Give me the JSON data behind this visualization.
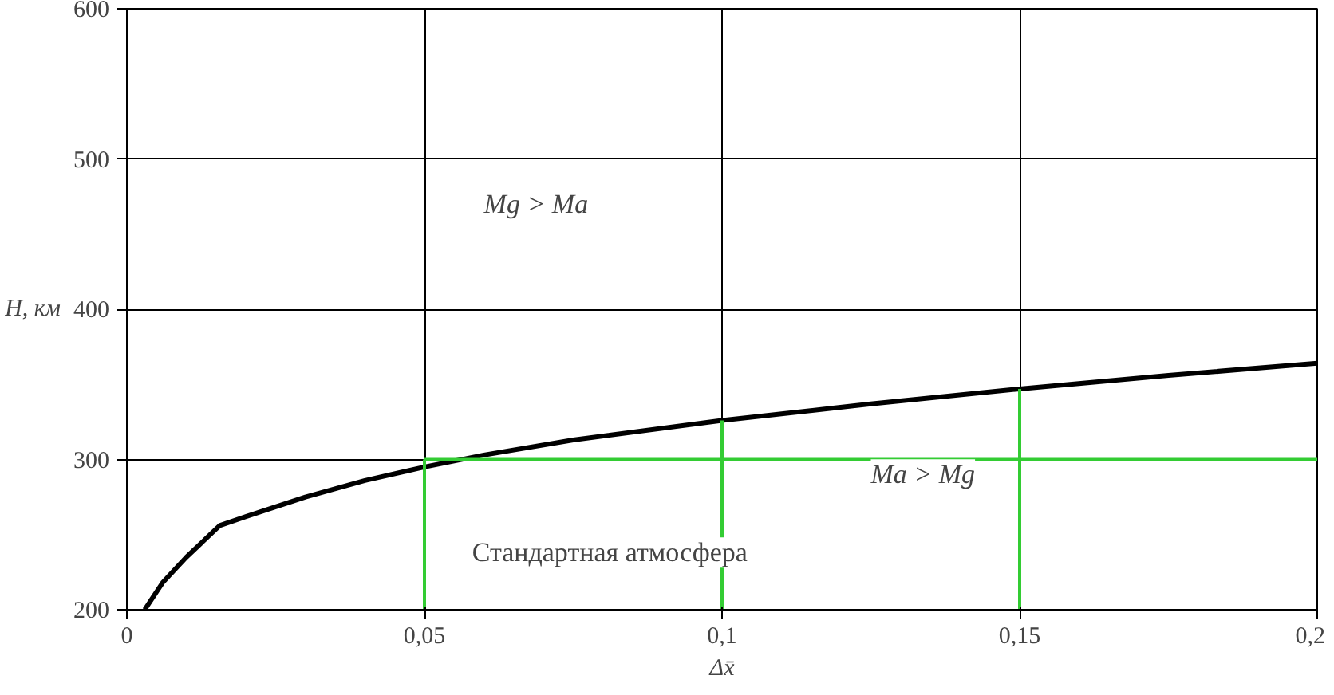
{
  "chart_data": {
    "type": "line",
    "xlabel": "Δx̄",
    "ylabel": "H, км",
    "xlim": [
      0,
      0.2
    ],
    "ylim": [
      200,
      600
    ],
    "xticks": [
      0,
      {
        "value": 0.05,
        "label": "0,05"
      },
      {
        "value": 0.1,
        "label": "0,1"
      },
      {
        "value": 0.15,
        "label": "0,15"
      },
      {
        "value": 0.2,
        "label": "0,2"
      }
    ],
    "yticks": [
      200,
      300,
      400,
      500,
      600
    ],
    "grid": true,
    "series": [
      {
        "color": "#000000",
        "x": [
          0.003,
          0.006,
          0.01,
          0.0156,
          0.02,
          0.03,
          0.04,
          0.05,
          0.06,
          0.075,
          0.1,
          0.125,
          0.15,
          0.175,
          0.2
        ],
        "values": [
          200,
          218,
          235,
          256,
          262,
          275,
          286,
          295,
          303,
          313,
          326,
          337,
          347,
          356,
          364
        ]
      },
      {
        "color": "#33cc33",
        "x": [
          0.05,
          0.2
        ],
        "values": [
          300,
          300
        ]
      },
      {
        "color": "#33cc33",
        "x": [
          0.05,
          0.05
        ],
        "values": [
          200,
          300
        ]
      },
      {
        "color": "#33cc33",
        "x": [
          0.1,
          0.1
        ],
        "values": [
          200,
          326
        ]
      },
      {
        "color": "#33cc33",
        "x": [
          0.15,
          0.15
        ],
        "values": [
          200,
          347
        ]
      }
    ],
    "annotations": [
      "Mg > Ma",
      "Ma > Mg",
      "Стандартная атмосфера"
    ]
  }
}
